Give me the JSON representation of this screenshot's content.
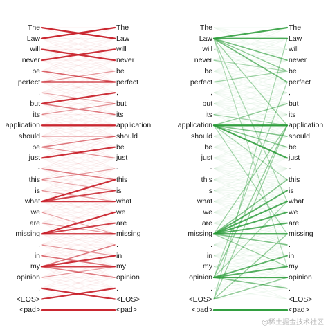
{
  "tokens": [
    "The",
    "Law",
    "will",
    "never",
    "be",
    "perfect",
    ",",
    "but",
    "its",
    "application",
    "should",
    "be",
    "just",
    "-",
    "this",
    "is",
    "what",
    "we",
    "are",
    "missing",
    ".",
    "in",
    "my",
    "opinion",
    ".",
    "<EOS>",
    "<pad>"
  ],
  "panels": [
    {
      "color": "#c81e28",
      "edges": [
        [
          0,
          1,
          0.95
        ],
        [
          1,
          0,
          0.95
        ],
        [
          2,
          3,
          0.9
        ],
        [
          3,
          2,
          0.9
        ],
        [
          4,
          5,
          0.6
        ],
        [
          5,
          5,
          0.95
        ],
        [
          5,
          4,
          0.3
        ],
        [
          6,
          7,
          0.25
        ],
        [
          7,
          6,
          0.9
        ],
        [
          7,
          8,
          0.5
        ],
        [
          8,
          7,
          0.35
        ],
        [
          9,
          9,
          0.95
        ],
        [
          10,
          10,
          0.35
        ],
        [
          11,
          10,
          0.5
        ],
        [
          12,
          11,
          0.9
        ],
        [
          11,
          12,
          0.35
        ],
        [
          13,
          14,
          0.5
        ],
        [
          14,
          13,
          0.3
        ],
        [
          16,
          14,
          0.9
        ],
        [
          16,
          15,
          0.8
        ],
        [
          16,
          16,
          0.85
        ],
        [
          15,
          16,
          0.3
        ],
        [
          14,
          15,
          0.25
        ],
        [
          19,
          17,
          0.9
        ],
        [
          19,
          18,
          0.8
        ],
        [
          19,
          19,
          0.9
        ],
        [
          18,
          19,
          0.3
        ],
        [
          17,
          19,
          0.25
        ],
        [
          22,
          20,
          0.5
        ],
        [
          22,
          21,
          0.9
        ],
        [
          22,
          22,
          0.8
        ],
        [
          21,
          22,
          0.55
        ],
        [
          22,
          23,
          0.5
        ],
        [
          20,
          21,
          0.3
        ],
        [
          23,
          22,
          0.3
        ],
        [
          24,
          25,
          0.9
        ],
        [
          25,
          24,
          0.9
        ],
        [
          26,
          26,
          0.95
        ]
      ]
    },
    {
      "color": "#2a9b38",
      "edges": [
        [
          1,
          0,
          0.85
        ],
        [
          1,
          1,
          0.8
        ],
        [
          1,
          3,
          0.55
        ],
        [
          1,
          5,
          0.6
        ],
        [
          1,
          4,
          0.4
        ],
        [
          1,
          9,
          0.35
        ],
        [
          1,
          16,
          0.3
        ],
        [
          1,
          22,
          0.25
        ],
        [
          9,
          9,
          0.95
        ],
        [
          9,
          7,
          0.4
        ],
        [
          9,
          10,
          0.5
        ],
        [
          9,
          11,
          0.45
        ],
        [
          9,
          12,
          0.85
        ],
        [
          9,
          19,
          0.3
        ],
        [
          9,
          14,
          0.3
        ],
        [
          19,
          14,
          0.5
        ],
        [
          19,
          15,
          0.75
        ],
        [
          19,
          16,
          0.8
        ],
        [
          19,
          17,
          0.8
        ],
        [
          19,
          18,
          0.75
        ],
        [
          19,
          19,
          0.9
        ],
        [
          19,
          20,
          0.5
        ],
        [
          19,
          9,
          0.35
        ],
        [
          19,
          22,
          0.35
        ],
        [
          23,
          21,
          0.7
        ],
        [
          23,
          22,
          0.75
        ],
        [
          23,
          23,
          0.85
        ],
        [
          23,
          24,
          0.5
        ],
        [
          23,
          9,
          0.4
        ],
        [
          23,
          16,
          0.3
        ],
        [
          23,
          5,
          0.3
        ],
        [
          25,
          1,
          0.3
        ],
        [
          25,
          9,
          0.35
        ],
        [
          25,
          19,
          0.4
        ],
        [
          25,
          23,
          0.4
        ],
        [
          5,
          4,
          0.3
        ],
        [
          3,
          4,
          0.25
        ],
        [
          8,
          9,
          0.3
        ],
        [
          26,
          26,
          0.95
        ]
      ]
    }
  ],
  "watermark": "@稀土掘金技术社区"
}
